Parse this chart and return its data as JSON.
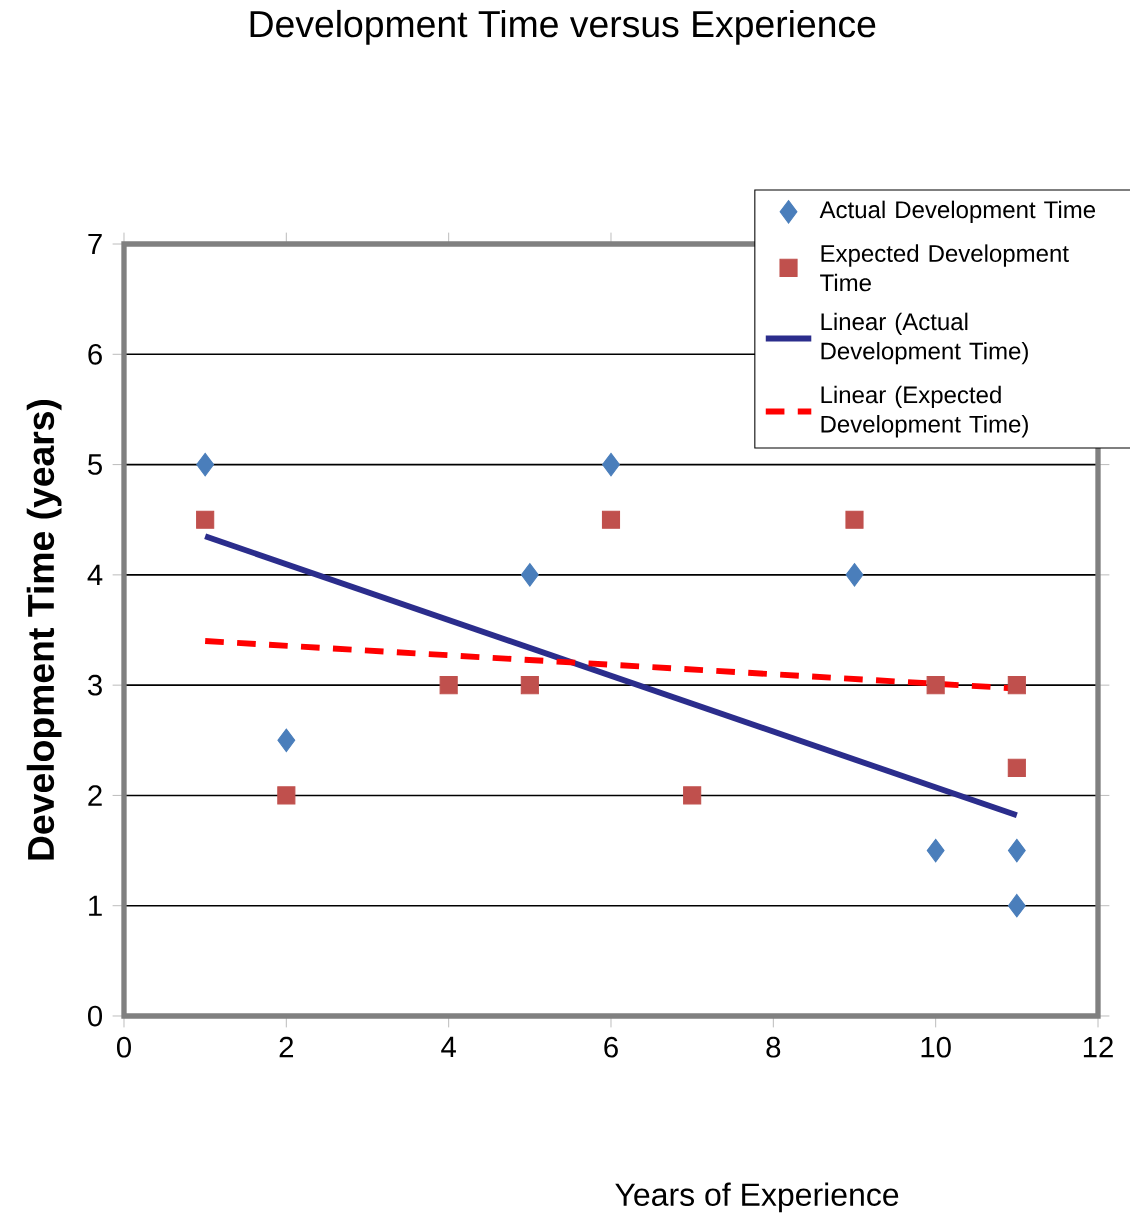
{
  "chart_data": {
    "type": "scatter",
    "title": "Development Time versus Experience",
    "xlabel": "Years of Experience",
    "ylabel": "Development Time (years)",
    "xlim": [
      0,
      12
    ],
    "xticks": [
      0,
      2,
      4,
      6,
      8,
      10,
      12
    ],
    "ylim": [
      0,
      7
    ],
    "yticks": [
      0,
      1,
      2,
      3,
      4,
      5,
      6,
      7
    ],
    "grid": "y",
    "legend": "top right",
    "series": [
      {
        "name": "Actual Development Time",
        "marker": "diamond",
        "color": "#4a7ebb",
        "x": [
          1,
          2,
          5,
          6,
          9,
          10,
          11,
          11
        ],
        "values": [
          5,
          2.5,
          4,
          5,
          4,
          1.5,
          1.5,
          1
        ]
      },
      {
        "name": "Expected Development Time",
        "marker": "square",
        "color": "#c0504d",
        "x": [
          1,
          2,
          4,
          5,
          6,
          7,
          9,
          10,
          11,
          11
        ],
        "values": [
          4.5,
          2,
          3,
          3,
          4.5,
          2,
          4.5,
          3,
          3,
          2.25
        ]
      },
      {
        "name": "Linear (Actual Development Time)",
        "type": "line",
        "marker": "none",
        "line_style": "solid",
        "color": "#2b2d8c",
        "x": [
          1,
          11
        ],
        "values": [
          4.35,
          1.82
        ]
      },
      {
        "name": "Linear (Expected Development Time)",
        "type": "line",
        "marker": "none",
        "line_style": "dashed",
        "color": "#ff0000",
        "x": [
          1,
          11
        ],
        "values": [
          3.4,
          2.97
        ]
      }
    ]
  }
}
